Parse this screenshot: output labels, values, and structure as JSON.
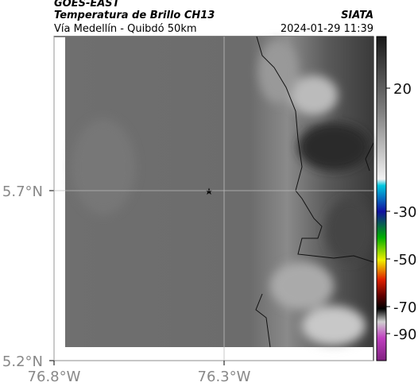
{
  "header": {
    "satellite": "GOES-EAST",
    "product": "Temperatura de Brillo CH13",
    "region": "Vía Medellín - Quibdó 50km",
    "source": "SIATA",
    "datetime": "2024-01-29 11:39"
  },
  "map": {
    "lat_ticks": [
      {
        "value": 5.7,
        "label": "5.7°N"
      },
      {
        "value": 5.2,
        "label": "5.2°N"
      }
    ],
    "lon_ticks": [
      {
        "value": -76.8,
        "label": "76.8°W"
      },
      {
        "value": -76.3,
        "label": "76.3°W"
      }
    ]
  },
  "colorbar": {
    "ticks": [
      20,
      -30,
      -50,
      -70,
      -90
    ]
  }
}
